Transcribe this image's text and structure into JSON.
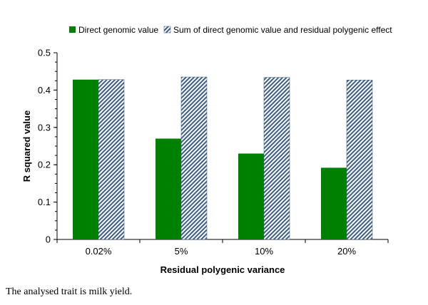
{
  "chart_data": {
    "type": "bar",
    "categories": [
      "0.02%",
      "5%",
      "10%",
      "20%"
    ],
    "series": [
      {
        "name": "Direct genomic value",
        "values": [
          0.428,
          0.27,
          0.23,
          0.192
        ],
        "color": "#008000",
        "pattern": "solid"
      },
      {
        "name": "Sum of direct genomic value and residual polygenic effect",
        "values": [
          0.428,
          0.435,
          0.434,
          0.427
        ],
        "color": "#3d5f85",
        "pattern": "diagonal-hatch"
      }
    ],
    "title": "",
    "xlabel": "Residual polygenic variance",
    "ylabel": "R squared value",
    "ylim": [
      0,
      0.5
    ],
    "yticks": [
      "0",
      "0.1",
      "0.2",
      "0.3",
      "0.4",
      "0.5"
    ],
    "grid": false,
    "legend_position": "top"
  },
  "caption": "The analysed trait is milk yield."
}
